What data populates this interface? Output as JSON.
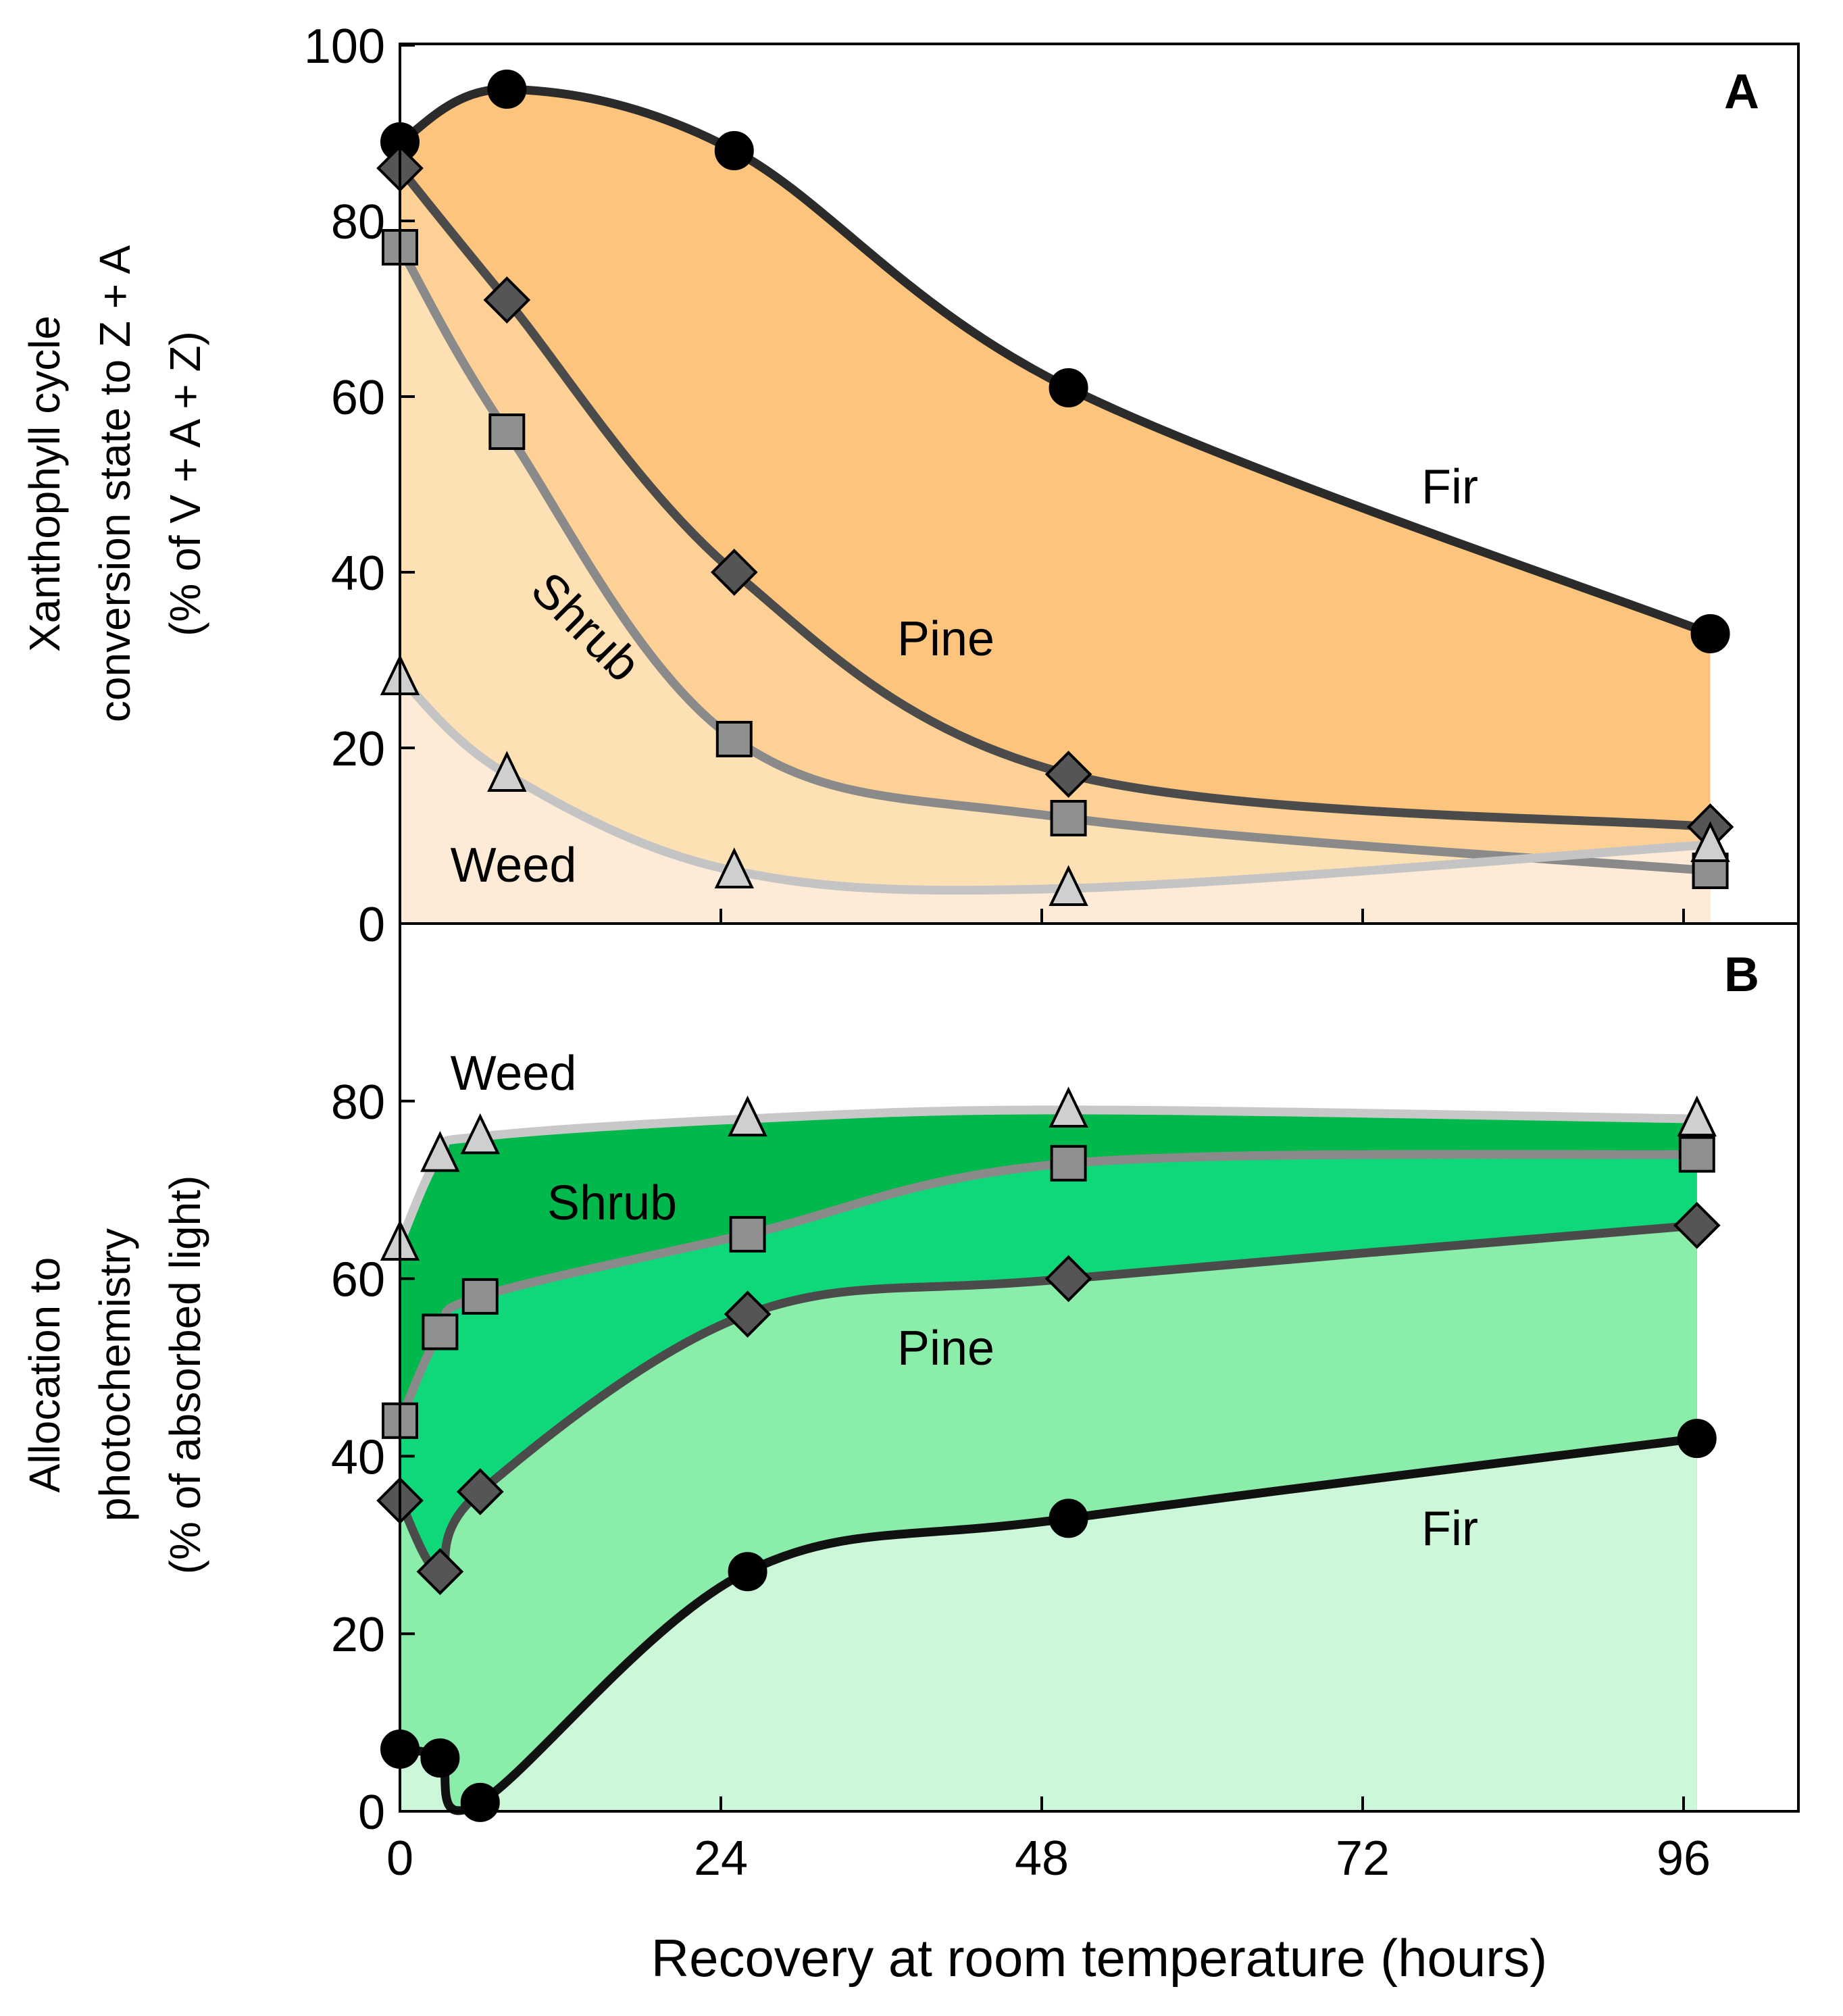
{
  "chart_data": [
    {
      "panel": "A",
      "type": "area",
      "ylabel_lines": [
        "Xanthophyll cycle",
        "conversion state to Z + A",
        "(% of V + A + Z)"
      ],
      "ylim": [
        0,
        100
      ],
      "yticks": [
        0,
        20,
        40,
        60,
        80,
        100
      ],
      "xlim": [
        0,
        104
      ],
      "series": [
        {
          "name": "Fir",
          "marker": "circle",
          "color": "#2b2b2b",
          "fill": "#fcc47c",
          "x": [
            0,
            8,
            25,
            50,
            98
          ],
          "values": [
            89,
            95,
            88,
            61,
            33
          ]
        },
        {
          "name": "Pine",
          "marker": "diamond",
          "color": "#4b4b4b",
          "fill": "#fdd096",
          "x": [
            0,
            8,
            25,
            50,
            98
          ],
          "values": [
            86,
            71,
            40,
            17,
            11
          ]
        },
        {
          "name": "Shrub",
          "marker": "square",
          "color": "#8a8a8a",
          "fill": "#fde1b4",
          "x": [
            0,
            8,
            25,
            50,
            98
          ],
          "values": [
            77,
            56,
            21,
            12,
            6
          ]
        },
        {
          "name": "Weed",
          "marker": "triangle",
          "color": "#c4c4c4",
          "fill": "#fdebd8",
          "x": [
            0,
            8,
            25,
            50,
            98
          ],
          "values": [
            28,
            17,
            6,
            4,
            9
          ]
        }
      ]
    },
    {
      "panel": "B",
      "type": "area",
      "ylabel_lines": [
        "Allocation to",
        "photochemistry",
        "(% of absorbed light)"
      ],
      "ylim": [
        0,
        100
      ],
      "yticks": [
        0,
        20,
        40,
        60,
        80
      ],
      "xlim": [
        0,
        104
      ],
      "series": [
        {
          "name": "Weed",
          "marker": "triangle",
          "color": "#c8c8c8",
          "fill": "#00b84c",
          "x": [
            0,
            3,
            6,
            26,
            50,
            97
          ],
          "values": [
            64,
            74,
            76,
            78,
            79,
            78
          ]
        },
        {
          "name": "Shrub",
          "marker": "square",
          "color": "#8a8a8a",
          "fill": "#0ed87a",
          "x": [
            0,
            3,
            6,
            26,
            50,
            97
          ],
          "values": [
            44,
            54,
            58,
            65,
            73,
            74
          ]
        },
        {
          "name": "Pine",
          "marker": "diamond",
          "color": "#4b4b4b",
          "fill": "#8aeeaa",
          "x": [
            0,
            3,
            6,
            26,
            50,
            97
          ],
          "values": [
            35,
            27,
            36,
            56,
            60,
            66
          ]
        },
        {
          "name": "Fir",
          "marker": "circle",
          "color": "#111111",
          "fill": "#ccf7d8",
          "x": [
            0,
            3,
            6,
            26,
            50,
            97
          ],
          "values": [
            7,
            6,
            1,
            27,
            33,
            42
          ]
        }
      ]
    }
  ],
  "xaxis": {
    "label": "Recovery at room temperature (hours)",
    "ticks": [
      0,
      24,
      48,
      72,
      96
    ]
  },
  "panel_labels": {
    "a": "A",
    "b": "B"
  },
  "annotations": {
    "a": {
      "fir": "Fir",
      "pine": "Pine",
      "shrub": "Shrub",
      "weed": "Weed"
    },
    "b": {
      "weed": "Weed",
      "shrub": "Shrub",
      "pine": "Pine",
      "fir": "Fir"
    }
  }
}
